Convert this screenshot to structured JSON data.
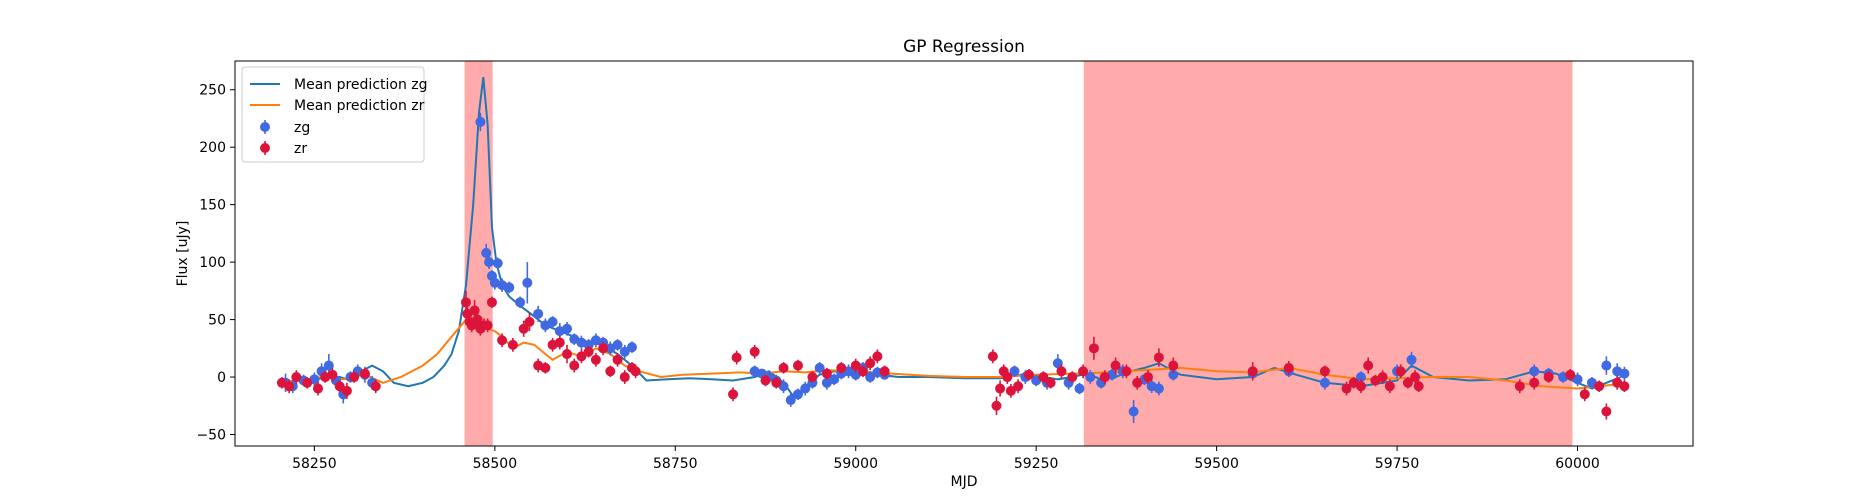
{
  "chart_data": {
    "type": "scatter",
    "title": "GP Regression",
    "xlabel": "MJD",
    "ylabel": "Flux [uJy]",
    "xlim": [
      58140,
      60160
    ],
    "ylim": [
      -60,
      275
    ],
    "xticks": [
      58250,
      58500,
      58750,
      59000,
      59250,
      59500,
      59750,
      60000
    ],
    "yticks": [
      -50,
      0,
      50,
      100,
      150,
      200,
      250
    ],
    "legend_position": "upper-left",
    "shaded_regions": [
      {
        "x_start": 58458,
        "x_end": 58497,
        "color": "#ff0000",
        "alpha": 0.33
      },
      {
        "x_start": 59316,
        "x_end": 59993,
        "color": "#ff0000",
        "alpha": 0.33
      }
    ],
    "lines": [
      {
        "name": "Mean prediction zg",
        "color": "#1f77b4",
        "x": [
          58205,
          58225,
          58245,
          58265,
          58285,
          58300,
          58315,
          58330,
          58345,
          58360,
          58380,
          58400,
          58415,
          58430,
          58440,
          58450,
          58460,
          58470,
          58478,
          58484,
          58490,
          58496,
          58502,
          58510,
          58520,
          58535,
          58550,
          58570,
          58590,
          58610,
          58630,
          58650,
          58670,
          58690,
          58710,
          58740,
          58770,
          58800,
          58830,
          58860,
          58880,
          58900,
          58915,
          58930,
          58950,
          58970,
          58990,
          59010,
          59030,
          59060,
          59100,
          59150,
          59200,
          59230,
          59260,
          59280,
          59300,
          59320,
          59340,
          59360,
          59380,
          59400,
          59420,
          59450,
          59500,
          59550,
          59580,
          59610,
          59650,
          59700,
          59750,
          59770,
          59800,
          59850,
          59900,
          59940,
          59970,
          60000,
          60020,
          60040,
          60060
        ],
        "y": [
          -5,
          -3,
          -2,
          -1,
          0,
          -3,
          5,
          10,
          5,
          -5,
          -8,
          -5,
          0,
          10,
          20,
          40,
          80,
          150,
          230,
          261,
          220,
          130,
          100,
          80,
          70,
          62,
          55,
          45,
          40,
          35,
          30,
          28,
          20,
          10,
          -3,
          -2,
          -1,
          -2,
          -3,
          0,
          5,
          -5,
          -18,
          -8,
          2,
          5,
          3,
          5,
          2,
          0,
          0,
          -1,
          -1,
          2,
          0,
          -2,
          0,
          3,
          -2,
          0,
          5,
          8,
          12,
          2,
          -2,
          0,
          8,
          2,
          -5,
          -8,
          -3,
          10,
          0,
          -3,
          -2,
          5,
          3,
          -5,
          -10,
          -5,
          0
        ]
      },
      {
        "name": "Mean prediction zr",
        "color": "#ff7f0e",
        "x": [
          58205,
          58230,
          58260,
          58290,
          58320,
          58345,
          58370,
          58400,
          58420,
          58440,
          58460,
          58470,
          58480,
          58490,
          58500,
          58510,
          58525,
          58540,
          58555,
          58570,
          58580,
          58600,
          58620,
          58640,
          58660,
          58680,
          58700,
          58730,
          58760,
          58800,
          58840,
          58870,
          58900,
          58930,
          58960,
          59000,
          59050,
          59100,
          59150,
          59200,
          59250,
          59300,
          59350,
          59400,
          59450,
          59500,
          59550,
          59600,
          59650,
          59700,
          59750,
          59800,
          59850,
          59900,
          59950,
          60000,
          60030,
          60060
        ],
        "y": [
          -5,
          -3,
          0,
          -2,
          2,
          -5,
          0,
          10,
          20,
          35,
          50,
          52,
          48,
          42,
          40,
          35,
          25,
          30,
          28,
          20,
          15,
          22,
          18,
          25,
          20,
          10,
          5,
          0,
          2,
          3,
          4,
          3,
          5,
          4,
          6,
          5,
          3,
          1,
          0,
          0,
          2,
          3,
          4,
          6,
          8,
          5,
          4,
          8,
          2,
          -2,
          -1,
          0,
          0,
          -3,
          -8,
          -10,
          -8,
          -6
        ]
      }
    ],
    "series": [
      {
        "name": "zg",
        "color": "#4169e1",
        "points": [
          [
            58210,
            -5,
            8
          ],
          [
            58220,
            -8,
            6
          ],
          [
            58235,
            -3,
            5
          ],
          [
            58250,
            -2,
            6
          ],
          [
            58260,
            5,
            7
          ],
          [
            58270,
            10,
            10
          ],
          [
            58280,
            -3,
            6
          ],
          [
            58290,
            -15,
            8
          ],
          [
            58300,
            0,
            5
          ],
          [
            58310,
            5,
            6
          ],
          [
            58320,
            2,
            7
          ],
          [
            58330,
            -5,
            6
          ],
          [
            58480,
            222,
            8
          ],
          [
            58488,
            108,
            8
          ],
          [
            58492,
            100,
            6
          ],
          [
            58496,
            88,
            5
          ],
          [
            58500,
            82,
            6
          ],
          [
            58504,
            99,
            5
          ],
          [
            58510,
            80,
            6
          ],
          [
            58520,
            78,
            5
          ],
          [
            58535,
            65,
            5
          ],
          [
            58545,
            82,
            18
          ],
          [
            58560,
            55,
            7
          ],
          [
            58570,
            45,
            6
          ],
          [
            58580,
            48,
            5
          ],
          [
            58590,
            40,
            7
          ],
          [
            58600,
            42,
            6
          ],
          [
            58610,
            33,
            5
          ],
          [
            58620,
            30,
            6
          ],
          [
            58630,
            28,
            5
          ],
          [
            58640,
            32,
            6
          ],
          [
            58650,
            30,
            5
          ],
          [
            58660,
            25,
            6
          ],
          [
            58670,
            28,
            5
          ],
          [
            58680,
            22,
            6
          ],
          [
            58690,
            26,
            5
          ],
          [
            58860,
            5,
            5
          ],
          [
            58870,
            3,
            4
          ],
          [
            58880,
            0,
            5
          ],
          [
            58890,
            -3,
            5
          ],
          [
            58900,
            -8,
            6
          ],
          [
            58910,
            -20,
            6
          ],
          [
            58920,
            -15,
            5
          ],
          [
            58930,
            -10,
            6
          ],
          [
            58940,
            -5,
            5
          ],
          [
            58950,
            8,
            5
          ],
          [
            58960,
            -5,
            6
          ],
          [
            58970,
            -2,
            5
          ],
          [
            58980,
            3,
            5
          ],
          [
            58990,
            5,
            6
          ],
          [
            59000,
            2,
            5
          ],
          [
            59010,
            8,
            5
          ],
          [
            59020,
            0,
            5
          ],
          [
            59030,
            4,
            5
          ],
          [
            59040,
            2,
            4
          ],
          [
            59220,
            5,
            5
          ],
          [
            59235,
            0,
            6
          ],
          [
            59250,
            -3,
            5
          ],
          [
            59265,
            -5,
            6
          ],
          [
            59280,
            12,
            8
          ],
          [
            59295,
            -5,
            6
          ],
          [
            59310,
            -10,
            5
          ],
          [
            59325,
            0,
            6
          ],
          [
            59340,
            -5,
            5
          ],
          [
            59355,
            2,
            5
          ],
          [
            59370,
            5,
            6
          ],
          [
            59385,
            -30,
            10
          ],
          [
            59400,
            -2,
            5
          ],
          [
            59410,
            -8,
            6
          ],
          [
            59420,
            -10,
            6
          ],
          [
            59440,
            2,
            5
          ],
          [
            59550,
            3,
            5
          ],
          [
            59600,
            5,
            5
          ],
          [
            59650,
            -5,
            6
          ],
          [
            59700,
            0,
            5
          ],
          [
            59750,
            5,
            6
          ],
          [
            59770,
            15,
            7
          ],
          [
            59940,
            5,
            6
          ],
          [
            59960,
            3,
            5
          ],
          [
            59980,
            0,
            5
          ],
          [
            60000,
            -2,
            6
          ],
          [
            60020,
            -5,
            5
          ],
          [
            60040,
            10,
            8
          ],
          [
            60055,
            5,
            7
          ],
          [
            60065,
            3,
            6
          ]
        ]
      },
      {
        "name": "zr",
        "color": "#dc143c",
        "points": [
          [
            58205,
            -5,
            5
          ],
          [
            58215,
            -8,
            6
          ],
          [
            58225,
            0,
            6
          ],
          [
            58240,
            -5,
            5
          ],
          [
            58255,
            -10,
            6
          ],
          [
            58265,
            0,
            5
          ],
          [
            58275,
            2,
            6
          ],
          [
            58285,
            -8,
            5
          ],
          [
            58295,
            -12,
            7
          ],
          [
            58305,
            0,
            5
          ],
          [
            58320,
            3,
            5
          ],
          [
            58335,
            -8,
            6
          ],
          [
            58460,
            65,
            10
          ],
          [
            58462,
            55,
            8
          ],
          [
            58465,
            48,
            7
          ],
          [
            58468,
            45,
            6
          ],
          [
            58472,
            58,
            9
          ],
          [
            58476,
            50,
            7
          ],
          [
            58480,
            42,
            6
          ],
          [
            58485,
            45,
            6
          ],
          [
            58490,
            45,
            6
          ],
          [
            58496,
            65,
            5
          ],
          [
            58510,
            32,
            6
          ],
          [
            58525,
            28,
            6
          ],
          [
            58540,
            42,
            7
          ],
          [
            58548,
            48,
            8
          ],
          [
            58560,
            10,
            6
          ],
          [
            58570,
            8,
            5
          ],
          [
            58580,
            28,
            6
          ],
          [
            58590,
            30,
            6
          ],
          [
            58600,
            20,
            8
          ],
          [
            58610,
            10,
            6
          ],
          [
            58620,
            18,
            6
          ],
          [
            58630,
            22,
            5
          ],
          [
            58640,
            15,
            6
          ],
          [
            58650,
            25,
            6
          ],
          [
            58660,
            5,
            5
          ],
          [
            58670,
            15,
            6
          ],
          [
            58680,
            0,
            6
          ],
          [
            58690,
            8,
            5
          ],
          [
            58695,
            5,
            6
          ],
          [
            58830,
            -15,
            6
          ],
          [
            58835,
            17,
            6
          ],
          [
            58860,
            22,
            6
          ],
          [
            58875,
            -3,
            5
          ],
          [
            58890,
            -5,
            5
          ],
          [
            58900,
            8,
            5
          ],
          [
            58920,
            10,
            5
          ],
          [
            58940,
            0,
            5
          ],
          [
            58960,
            3,
            5
          ],
          [
            58980,
            8,
            5
          ],
          [
            59000,
            10,
            6
          ],
          [
            59010,
            5,
            5
          ],
          [
            59020,
            12,
            6
          ],
          [
            59030,
            18,
            6
          ],
          [
            59040,
            5,
            5
          ],
          [
            59190,
            18,
            6
          ],
          [
            59195,
            -25,
            8
          ],
          [
            59200,
            -10,
            7
          ],
          [
            59205,
            5,
            6
          ],
          [
            59210,
            0,
            6
          ],
          [
            59215,
            -12,
            6
          ],
          [
            59225,
            -8,
            6
          ],
          [
            59240,
            2,
            5
          ],
          [
            59260,
            0,
            5
          ],
          [
            59270,
            -5,
            5
          ],
          [
            59285,
            5,
            6
          ],
          [
            59300,
            0,
            5
          ],
          [
            59315,
            5,
            6
          ],
          [
            59330,
            25,
            10
          ],
          [
            59345,
            0,
            6
          ],
          [
            59360,
            10,
            7
          ],
          [
            59375,
            5,
            6
          ],
          [
            59390,
            -5,
            6
          ],
          [
            59405,
            0,
            6
          ],
          [
            59420,
            17,
            8
          ],
          [
            59440,
            10,
            7
          ],
          [
            59550,
            5,
            8
          ],
          [
            59600,
            8,
            6
          ],
          [
            59650,
            5,
            5
          ],
          [
            59680,
            -10,
            6
          ],
          [
            59690,
            -5,
            5
          ],
          [
            59700,
            -8,
            6
          ],
          [
            59710,
            10,
            7
          ],
          [
            59720,
            -3,
            5
          ],
          [
            59730,
            0,
            6
          ],
          [
            59740,
            -8,
            6
          ],
          [
            59755,
            5,
            6
          ],
          [
            59765,
            -5,
            5
          ],
          [
            59775,
            0,
            6
          ],
          [
            59780,
            -8,
            5
          ],
          [
            59920,
            -8,
            6
          ],
          [
            59940,
            -5,
            6
          ],
          [
            59960,
            0,
            5
          ],
          [
            59990,
            2,
            5
          ],
          [
            60010,
            -15,
            6
          ],
          [
            60030,
            -8,
            5
          ],
          [
            60040,
            -30,
            7
          ],
          [
            60055,
            -5,
            6
          ],
          [
            60065,
            -8,
            5
          ]
        ]
      }
    ]
  }
}
